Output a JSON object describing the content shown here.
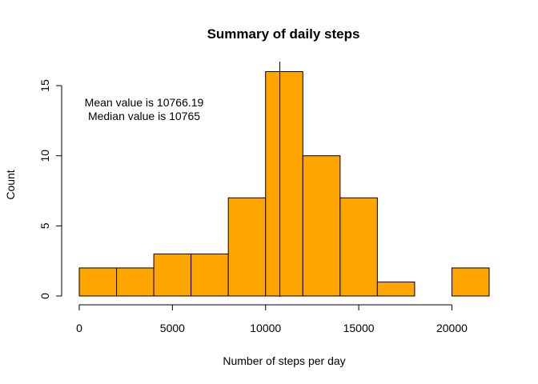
{
  "chart_data": {
    "type": "bar",
    "title": "Summary of daily steps",
    "xlabel": "Number of steps per day",
    "ylabel": "Count",
    "bin_width": 2000,
    "bins": [
      {
        "start": 0,
        "end": 2000,
        "count": 2
      },
      {
        "start": 2000,
        "end": 4000,
        "count": 2
      },
      {
        "start": 4000,
        "end": 6000,
        "count": 3
      },
      {
        "start": 6000,
        "end": 8000,
        "count": 3
      },
      {
        "start": 8000,
        "end": 10000,
        "count": 7
      },
      {
        "start": 10000,
        "end": 12000,
        "count": 16
      },
      {
        "start": 12000,
        "end": 14000,
        "count": 10
      },
      {
        "start": 14000,
        "end": 16000,
        "count": 7
      },
      {
        "start": 16000,
        "end": 18000,
        "count": 1
      },
      {
        "start": 18000,
        "end": 20000,
        "count": 0
      },
      {
        "start": 20000,
        "end": 22000,
        "count": 2
      }
    ],
    "xlim": [
      0,
      22000
    ],
    "ylim": [
      0,
      16.6
    ],
    "x_ticks": [
      0,
      5000,
      10000,
      15000,
      20000
    ],
    "x_tick_labels": [
      "0",
      "5000",
      "10000",
      "15000",
      "20000"
    ],
    "y_ticks": [
      0,
      5,
      10,
      15
    ],
    "y_tick_labels": [
      "0",
      "5",
      "10",
      "15"
    ],
    "mean_line_x": 10766.19,
    "annotations": [
      "Mean value is 10766.19",
      "Median value is 10765"
    ],
    "bar_color": "#FFA500",
    "edge_color": "#000000",
    "grid": false
  }
}
